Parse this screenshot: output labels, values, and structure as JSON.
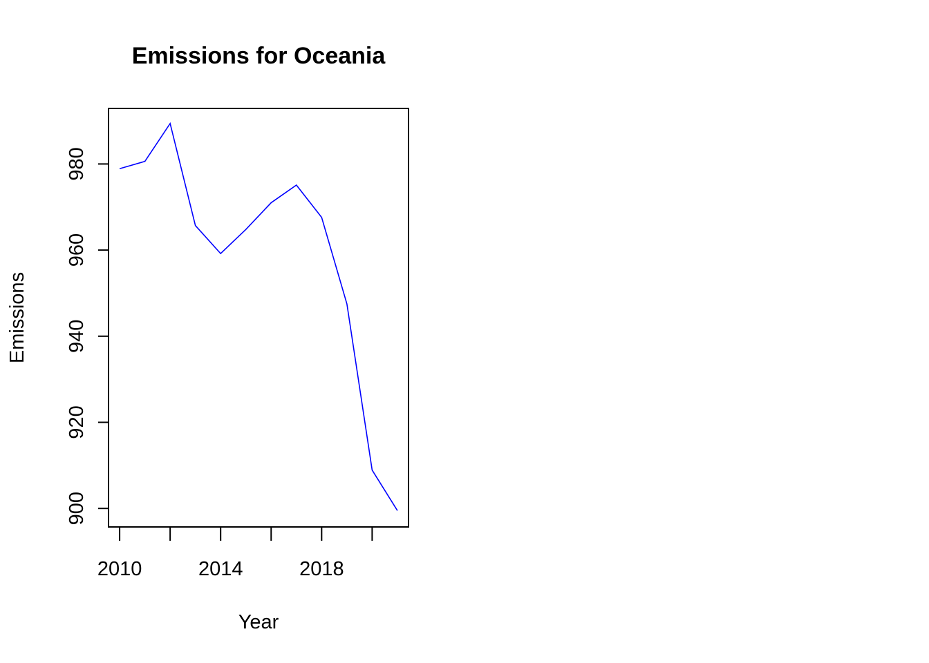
{
  "chart_data": {
    "type": "line",
    "title": "Emissions for Oceania",
    "xlabel": "Year",
    "ylabel": "Emissions",
    "x": [
      2010,
      2011,
      2012,
      2013,
      2014,
      2015,
      2016,
      2017,
      2018,
      2019,
      2020,
      2021
    ],
    "series": [
      {
        "values": [
          978.9,
          980.6,
          989.4,
          965.7,
          959.2,
          964.8,
          971.0,
          975.1,
          967.6,
          947.5,
          908.9,
          899.5
        ],
        "color": "#0000ff"
      }
    ],
    "xlim": [
      2009.56,
      2021.44
    ],
    "ylim": [
      895.7,
      992.9
    ],
    "x_ticks": [
      2010,
      2012,
      2014,
      2016,
      2018,
      2020
    ],
    "x_tick_labels": [
      "2010",
      "",
      "2014",
      "",
      "2018",
      ""
    ],
    "y_ticks": [
      900,
      920,
      940,
      960,
      980
    ],
    "y_tick_labels": [
      "900",
      "920",
      "940",
      "960",
      "980"
    ],
    "grid": false,
    "legend": false
  }
}
